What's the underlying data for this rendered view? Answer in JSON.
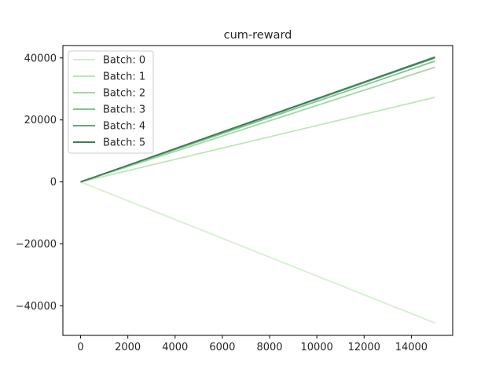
{
  "chart_data": {
    "type": "line",
    "title": "cum-reward",
    "xlabel": "",
    "ylabel": "",
    "xlim": [
      -750,
      15750
    ],
    "ylim": [
      -49500,
      44000
    ],
    "x_ticks": [
      0,
      2000,
      4000,
      6000,
      8000,
      10000,
      12000,
      14000
    ],
    "y_ticks": [
      -40000,
      -20000,
      0,
      20000,
      40000
    ],
    "grid": false,
    "legend_position": "top-left",
    "series": [
      {
        "name": "Batch: 0",
        "color": "#d4efcf",
        "x": [
          0,
          15000
        ],
        "y": [
          0,
          -45500
        ]
      },
      {
        "name": "Batch: 1",
        "color": "#bfe6b9",
        "x": [
          0,
          15000
        ],
        "y": [
          0,
          27300
        ]
      },
      {
        "name": "Batch: 2",
        "color": "#a3d6a3",
        "x": [
          0,
          15000
        ],
        "y": [
          0,
          37000
        ]
      },
      {
        "name": "Batch: 3",
        "color": "#83c492",
        "x": [
          0,
          15000
        ],
        "y": [
          0,
          39000
        ]
      },
      {
        "name": "Batch: 4",
        "color": "#5fa87c",
        "x": [
          0,
          15000
        ],
        "y": [
          0,
          40000
        ]
      },
      {
        "name": "Batch: 5",
        "color": "#3a7d54",
        "x": [
          0,
          15000
        ],
        "y": [
          0,
          40300
        ]
      }
    ]
  }
}
